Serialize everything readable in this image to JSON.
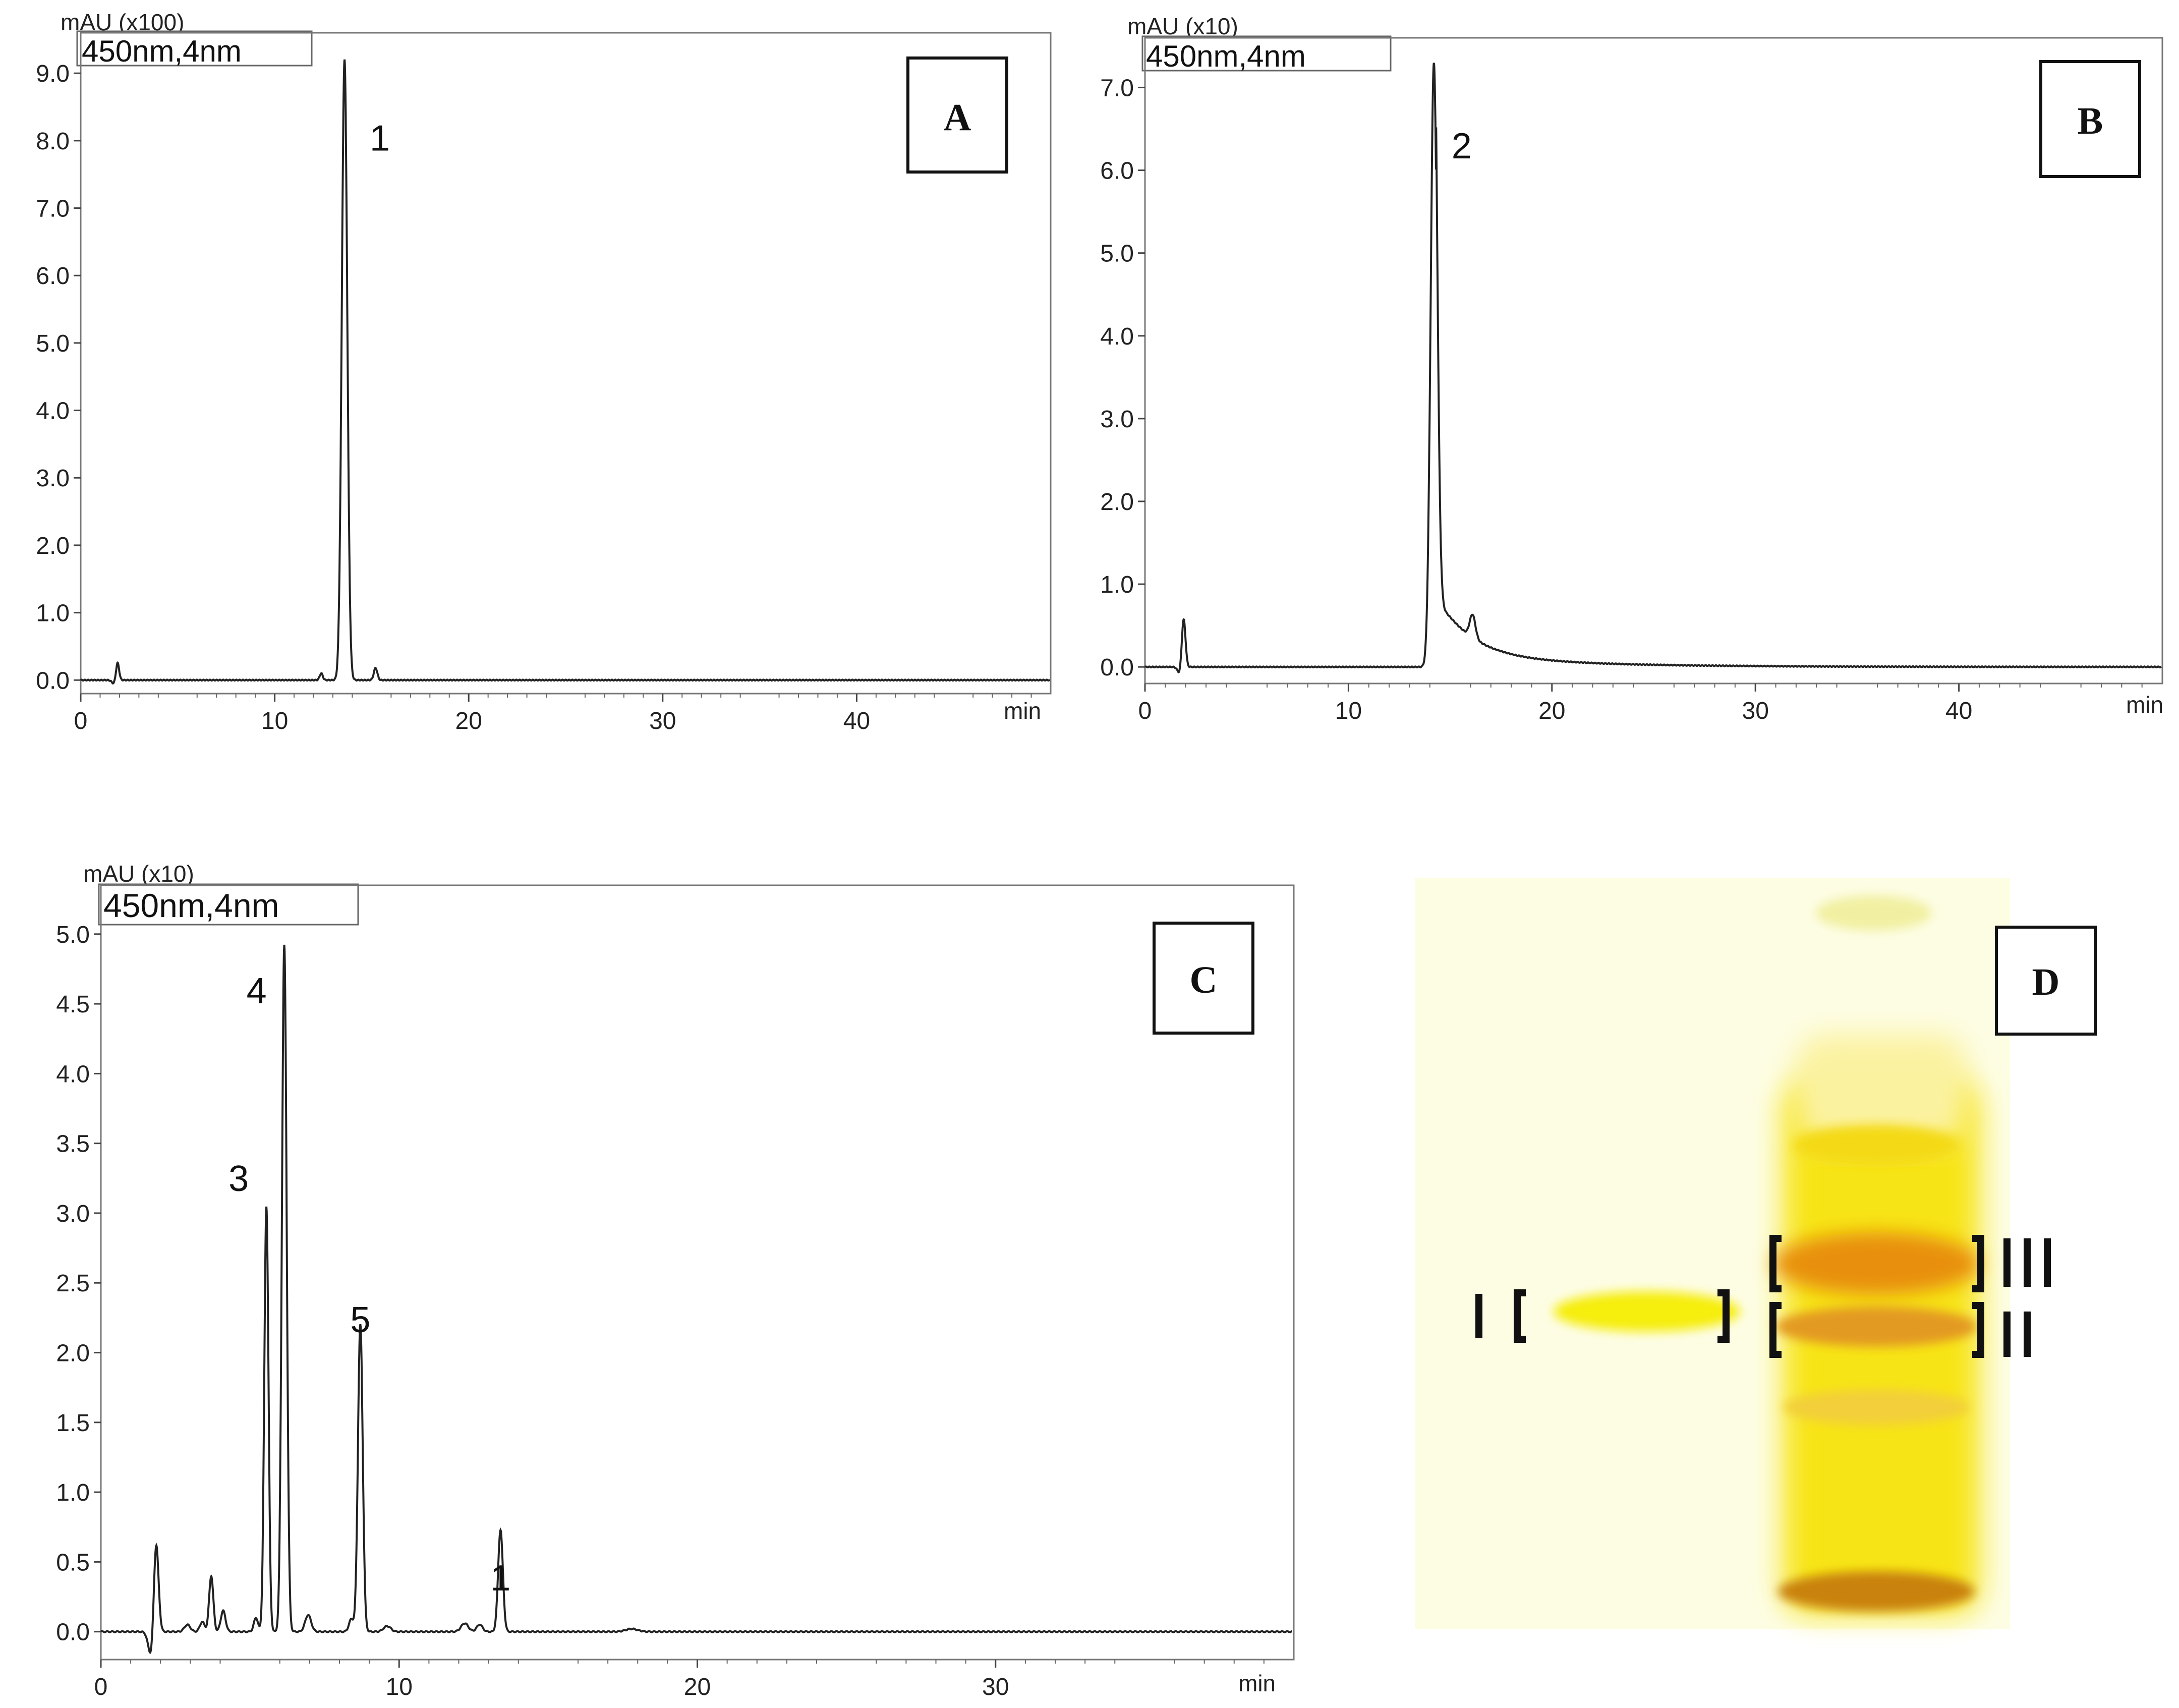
{
  "chart_data": [
    {
      "type": "line",
      "panel": "A",
      "unit_label": "mAU (x100)",
      "legend_text": "450nm,4nm",
      "xlabel": "min",
      "xlim": [
        0,
        50
      ],
      "ylim": [
        -0.2,
        9.6
      ],
      "x_ticks": [
        0,
        10,
        20,
        30,
        40
      ],
      "x_tick_labels": [
        "0",
        "10",
        "20",
        "30",
        "40"
      ],
      "y_ticks": [
        0,
        1,
        2,
        3,
        4,
        5,
        6,
        7,
        8,
        9
      ],
      "y_tick_labels": [
        "0.0",
        "1.0",
        "2.0",
        "3.0",
        "4.0",
        "5.0",
        "6.0",
        "7.0",
        "8.0",
        "9.0"
      ],
      "baseline": 0.0,
      "peaks": [
        {
          "x": 1.9,
          "height": 0.26,
          "width": 0.08
        },
        {
          "x": 13.6,
          "height": 9.2,
          "width": 0.14,
          "label": "1"
        },
        {
          "x": 12.4,
          "height": 0.1,
          "width": 0.08
        },
        {
          "x": 15.2,
          "height": 0.18,
          "width": 0.09
        }
      ],
      "dip": {
        "x": 1.7,
        "depth": -0.05
      }
    },
    {
      "type": "line",
      "panel": "B",
      "unit_label": "mAU (x10)",
      "legend_text": "450nm,4nm",
      "xlabel": "min",
      "xlim": [
        0,
        50
      ],
      "ylim": [
        -0.2,
        7.6
      ],
      "x_ticks": [
        0,
        10,
        20,
        30,
        40
      ],
      "x_tick_labels": [
        "0",
        "10",
        "20",
        "30",
        "40"
      ],
      "y_ticks": [
        0,
        1,
        2,
        3,
        4,
        5,
        6,
        7
      ],
      "y_tick_labels": [
        "0.0",
        "1.0",
        "2.0",
        "3.0",
        "4.0",
        "5.0",
        "6.0",
        "7.0"
      ],
      "baseline": 0.0,
      "peaks": [
        {
          "x": 1.9,
          "height": 0.58,
          "width": 0.09
        },
        {
          "x": 14.2,
          "height": 7.3,
          "width": 0.16,
          "label": "2"
        },
        {
          "x": 16.1,
          "height": 0.28,
          "width": 0.14
        }
      ],
      "tail": {
        "start": 14.3,
        "amplitude": 0.75,
        "decay": 1.6,
        "drift": 0.15
      },
      "dip": {
        "x": 1.7,
        "depth": -0.08
      }
    },
    {
      "type": "line",
      "panel": "C",
      "unit_label": "mAU (x10)",
      "legend_text": "450nm,4nm",
      "xlabel": "min",
      "xlim": [
        0,
        40
      ],
      "ylim": [
        -0.2,
        5.35
      ],
      "x_ticks": [
        0,
        10,
        20,
        30
      ],
      "x_tick_labels": [
        "0",
        "10",
        "20",
        "30"
      ],
      "y_ticks": [
        0,
        0.5,
        1,
        1.5,
        2,
        2.5,
        3,
        3.5,
        4,
        4.5,
        5
      ],
      "y_tick_labels": [
        "0.0",
        "0.5",
        "1.0",
        "1.5",
        "2.0",
        "2.5",
        "3.0",
        "3.5",
        "4.0",
        "4.5",
        "5.0"
      ],
      "baseline": 0.0,
      "peaks": [
        {
          "x": 1.85,
          "height": 0.68,
          "width": 0.08
        },
        {
          "x": 2.9,
          "height": 0.05,
          "width": 0.1
        },
        {
          "x": 3.4,
          "height": 0.07,
          "width": 0.08
        },
        {
          "x": 3.7,
          "height": 0.4,
          "width": 0.07
        },
        {
          "x": 4.1,
          "height": 0.15,
          "width": 0.08
        },
        {
          "x": 5.2,
          "height": 0.1,
          "width": 0.07
        },
        {
          "x": 5.55,
          "height": 3.05,
          "width": 0.07,
          "label": "3"
        },
        {
          "x": 6.15,
          "height": 4.92,
          "width": 0.08,
          "label": "4"
        },
        {
          "x": 6.95,
          "height": 0.12,
          "width": 0.1
        },
        {
          "x": 8.4,
          "height": 0.09,
          "width": 0.08
        },
        {
          "x": 8.7,
          "height": 2.2,
          "width": 0.08,
          "label": "5"
        },
        {
          "x": 9.6,
          "height": 0.04,
          "width": 0.12
        },
        {
          "x": 12.2,
          "height": 0.06,
          "width": 0.12
        },
        {
          "x": 12.7,
          "height": 0.05,
          "width": 0.1
        },
        {
          "x": 13.4,
          "height": 0.73,
          "width": 0.08,
          "label": "1"
        },
        {
          "x": 17.8,
          "height": 0.02,
          "width": 0.2
        }
      ],
      "dip": {
        "x": 1.7,
        "depth": -0.2
      }
    }
  ],
  "photo_panel": {
    "letter": "D",
    "band_labels": [
      "I",
      "II",
      "III"
    ],
    "colors": {
      "background": "#fdfde4",
      "sample_band": "#f6ee10",
      "lane_yellow": "#f7e417",
      "band_orange": "#e8900c",
      "band_dark": "#c98210"
    }
  }
}
